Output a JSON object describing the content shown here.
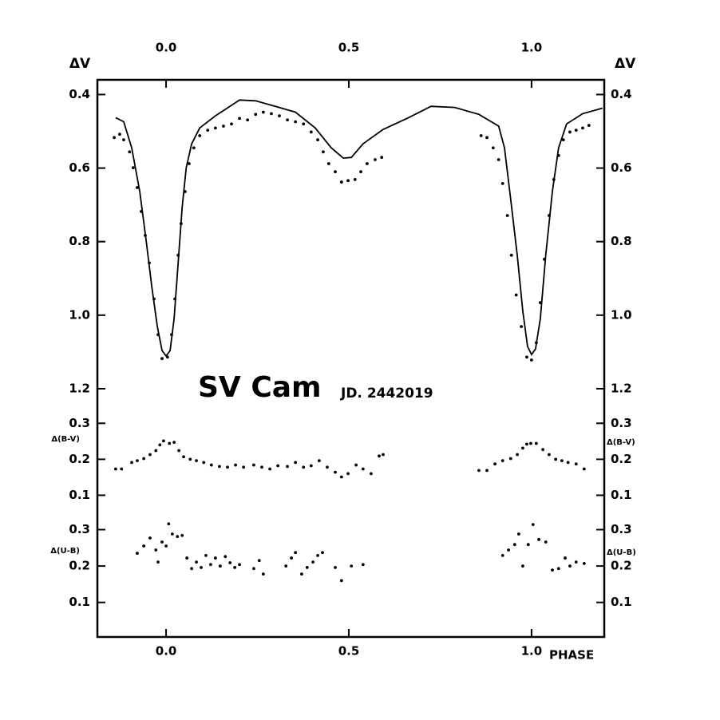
{
  "chart_data": [
    {
      "type": "combo",
      "title": "SV Cam",
      "annotation": "JD. 2442019",
      "y_label": "ΔV",
      "y_inverted": true,
      "xlim": [
        -0.188,
        1.199
      ],
      "xticks": [
        {
          "value": 0,
          "label": "0.0"
        },
        0.5,
        {
          "value": 1,
          "label": "1.0"
        }
      ],
      "xaxis_position": "top",
      "ylim": [
        0.36,
        1.25
      ],
      "yticks": [
        0.4,
        0.6,
        0.8,
        {
          "value": 1,
          "label": "1.0"
        },
        1.2
      ],
      "grid": false,
      "series": [
        {
          "type": "line",
          "color": "#000000",
          "x": [
            -0.138,
            -0.116,
            -0.094,
            -0.072,
            -0.055,
            -0.039,
            -0.024,
            -0.011,
            0,
            0.011,
            0.022,
            0.033,
            0.044,
            0.055,
            0.07,
            0.092,
            0.135,
            0.201,
            0.245,
            0.299,
            0.354,
            0.408,
            0.452,
            0.485,
            0.507,
            0.539,
            0.594,
            0.659,
            0.725,
            0.79,
            0.856,
            0.91,
            0.926,
            0.943,
            0.961,
            0.976,
            0.989,
            1.0,
            1.011,
            1.024,
            1.039,
            1.057,
            1.074,
            1.096,
            1.14,
            1.194
          ],
          "values": [
            0.463,
            0.474,
            0.545,
            0.664,
            0.794,
            0.923,
            1.031,
            1.096,
            1.111,
            1.096,
            1.01,
            0.858,
            0.707,
            0.599,
            0.534,
            0.491,
            0.458,
            0.415,
            0.417,
            0.432,
            0.448,
            0.491,
            0.545,
            0.573,
            0.571,
            0.534,
            0.495,
            0.465,
            0.432,
            0.435,
            0.454,
            0.486,
            0.545,
            0.685,
            0.837,
            0.988,
            1.085,
            1.107,
            1.092,
            1.01,
            0.837,
            0.664,
            0.545,
            0.48,
            0.452,
            0.437
          ]
        },
        {
          "type": "scatter",
          "color": "#000000",
          "x": [
            -0.142,
            -0.127,
            -0.116,
            -0.1,
            -0.09,
            -0.079,
            -0.068,
            -0.057,
            -0.046,
            -0.033,
            -0.022,
            -0.011,
            0.004,
            0.015,
            0.024,
            0.033,
            0.041,
            0.052,
            0.063,
            0.076,
            0.092,
            0.114,
            0.135,
            0.157,
            0.179,
            0.201,
            0.223,
            0.245,
            0.266,
            0.288,
            0.31,
            0.332,
            0.354,
            0.376,
            0.397,
            0.415,
            0.43,
            0.445,
            0.463,
            0.48,
            0.498,
            0.517,
            0.533,
            0.55,
            0.572,
            0.59,
            0.862,
            0.878,
            0.895,
            0.91,
            0.921,
            0.934,
            0.945,
            0.958,
            0.972,
            0.987,
            1.0,
            1.013,
            1.024,
            1.035,
            1.048,
            1.061,
            1.074,
            1.087,
            1.105,
            1.122,
            1.14,
            1.157
          ],
          "values": [
            0.517,
            0.508,
            0.523,
            0.556,
            0.599,
            0.653,
            0.718,
            0.783,
            0.858,
            0.956,
            1.053,
            1.118,
            1.114,
            1.053,
            0.956,
            0.837,
            0.751,
            0.664,
            0.588,
            0.545,
            0.512,
            0.497,
            0.491,
            0.486,
            0.48,
            0.465,
            0.469,
            0.454,
            0.448,
            0.452,
            0.458,
            0.469,
            0.474,
            0.48,
            0.502,
            0.523,
            0.556,
            0.588,
            0.61,
            0.638,
            0.634,
            0.631,
            0.61,
            0.588,
            0.577,
            0.571,
            0.512,
            0.517,
            0.545,
            0.577,
            0.642,
            0.729,
            0.837,
            0.945,
            1.031,
            1.114,
            1.122,
            1.075,
            0.966,
            0.848,
            0.729,
            0.631,
            0.566,
            0.523,
            0.502,
            0.497,
            0.491,
            0.484
          ]
        }
      ]
    },
    {
      "type": "scatter",
      "y_label": "Δ(B-V)",
      "y_inverted": false,
      "xlim": [
        -0.188,
        1.199
      ],
      "ylim": [
        0.05,
        0.345
      ],
      "yticks": [
        0.3,
        0.2,
        0.1
      ],
      "grid": false,
      "series": [
        {
          "type": "scatter",
          "color": "#000000",
          "x": [
            -0.138,
            -0.122,
            -0.094,
            -0.079,
            -0.061,
            -0.044,
            -0.028,
            -0.017,
            -0.007,
            0.009,
            0.022,
            0.035,
            0.048,
            0.066,
            0.083,
            0.103,
            0.124,
            0.146,
            0.168,
            0.19,
            0.212,
            0.24,
            0.262,
            0.284,
            0.306,
            0.332,
            0.354,
            0.376,
            0.397,
            0.419,
            0.441,
            0.463,
            0.48,
            0.498,
            0.52,
            0.539,
            0.561,
            0.583,
            0.594,
            0.856,
            0.878,
            0.9,
            0.921,
            0.943,
            0.961,
            0.976,
            0.987,
            0.998,
            1.013,
            1.031,
            1.048,
            1.066,
            1.083,
            1.1,
            1.122,
            1.144
          ],
          "values": [
            0.173,
            0.173,
            0.191,
            0.196,
            0.202,
            0.213,
            0.224,
            0.24,
            0.251,
            0.244,
            0.247,
            0.224,
            0.207,
            0.2,
            0.196,
            0.191,
            0.184,
            0.18,
            0.178,
            0.184,
            0.178,
            0.184,
            0.178,
            0.173,
            0.182,
            0.18,
            0.191,
            0.178,
            0.182,
            0.196,
            0.178,
            0.164,
            0.151,
            0.16,
            0.184,
            0.173,
            0.16,
            0.209,
            0.213,
            0.169,
            0.169,
            0.187,
            0.196,
            0.202,
            0.213,
            0.231,
            0.242,
            0.244,
            0.244,
            0.227,
            0.213,
            0.2,
            0.196,
            0.191,
            0.187,
            0.173
          ]
        }
      ]
    },
    {
      "type": "scatter",
      "y_label": "Δ(U-B)",
      "x_label": "PHASE",
      "y_inverted": false,
      "xlim": [
        -0.188,
        1.199
      ],
      "xticks": [
        {
          "value": 0,
          "label": "0.0"
        },
        0.5,
        {
          "value": 1,
          "label": "1.0"
        }
      ],
      "xaxis_position": "bottom",
      "ylim": [
        0.005,
        0.345
      ],
      "yticks": [
        0.3,
        0.2,
        0.1
      ],
      "grid": false,
      "series": [
        {
          "type": "scatter",
          "color": "#000000",
          "x": [
            -0.079,
            -0.061,
            -0.044,
            -0.028,
            -0.022,
            -0.011,
            0,
            0.007,
            0.017,
            0.031,
            0.044,
            0.057,
            0.07,
            0.083,
            0.096,
            0.109,
            0.122,
            0.135,
            0.148,
            0.162,
            0.175,
            0.188,
            0.201,
            0.24,
            0.255,
            0.266,
            0.328,
            0.343,
            0.354,
            0.371,
            0.386,
            0.402,
            0.415,
            0.428,
            0.463,
            0.48,
            0.507,
            0.539,
            0.921,
            0.937,
            0.954,
            0.965,
            0.976,
            0.991,
            1.004,
            1.02,
            1.039,
            1.057,
            1.074,
            1.092,
            1.105,
            1.122,
            1.144
          ],
          "values": [
            0.235,
            0.255,
            0.277,
            0.244,
            0.211,
            0.266,
            0.255,
            0.316,
            0.288,
            0.281,
            0.284,
            0.222,
            0.193,
            0.211,
            0.196,
            0.229,
            0.204,
            0.222,
            0.2,
            0.226,
            0.209,
            0.196,
            0.204,
            0.193,
            0.215,
            0.178,
            0.2,
            0.222,
            0.237,
            0.178,
            0.196,
            0.211,
            0.229,
            0.237,
            0.196,
            0.16,
            0.2,
            0.204,
            0.229,
            0.244,
            0.259,
            0.288,
            0.2,
            0.259,
            0.314,
            0.273,
            0.266,
            0.189,
            0.193,
            0.222,
            0.2,
            0.211,
            0.207
          ]
        }
      ]
    }
  ]
}
